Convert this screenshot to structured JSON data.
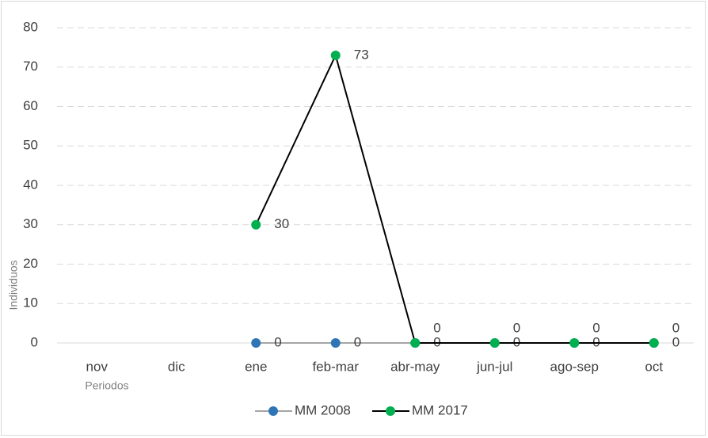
{
  "chart_data": {
    "type": "line",
    "x_label": "Periodos",
    "y_label": "Individuos",
    "categories": [
      "nov",
      "dic",
      "ene",
      "feb-mar",
      "abr-may",
      "jun-jul",
      "ago-sep",
      "oct"
    ],
    "series": [
      {
        "name": "MM 2008",
        "color": "#2e75b6",
        "line_color": "#a5a5a5",
        "values": [
          null,
          null,
          0,
          0,
          0,
          0,
          0,
          0
        ]
      },
      {
        "name": "MM 2017",
        "color": "#00b050",
        "line_color": "#000000",
        "values": [
          null,
          null,
          30,
          73,
          0,
          0,
          0,
          0
        ]
      }
    ],
    "ylim": [
      0,
      80
    ],
    "yticks": [
      0,
      10,
      20,
      30,
      40,
      50,
      60,
      70,
      80
    ],
    "grid": true,
    "legend": "bottom"
  }
}
